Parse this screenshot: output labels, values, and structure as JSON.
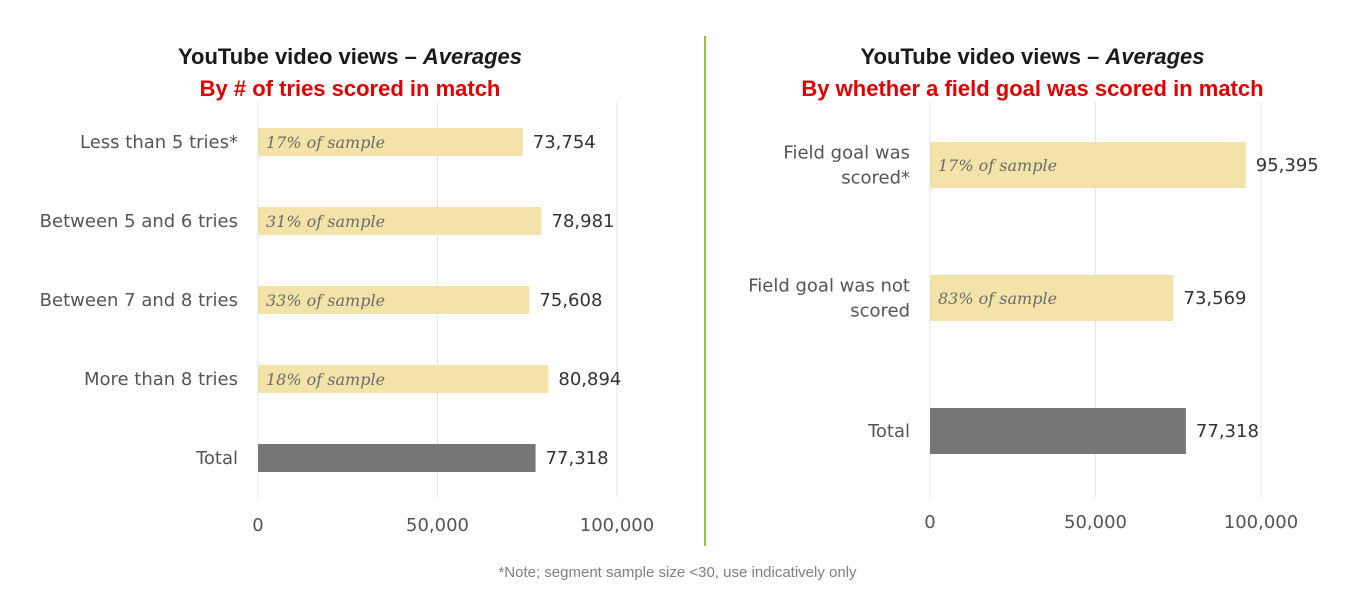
{
  "colors": {
    "bar": "#f3e3a8",
    "total_bar": "#767676",
    "grid": "#e3e3e3",
    "divider": "#8cc63f",
    "subtitle": "#e00000"
  },
  "footnote": "*Note; segment sample size <30, use indicatively only",
  "chart_data": [
    {
      "type": "bar",
      "orientation": "horizontal",
      "title": "YouTube video views – ",
      "title_italic": "Averages",
      "subtitle": "By # of tries scored in match",
      "categories": [
        "Less than 5 tries*",
        "Between 5 and 6 tries",
        "Between 7 and 8 tries",
        "More than 8 tries",
        "Total"
      ],
      "values": [
        73754,
        78981,
        75608,
        80894,
        77318
      ],
      "value_labels": [
        "73,754",
        "78,981",
        "75,608",
        "80,894",
        "77,318"
      ],
      "bar_annotations": [
        "17% of sample",
        "31% of sample",
        "33% of sample",
        "18% of sample",
        ""
      ],
      "xlim": [
        0,
        100000
      ],
      "x_ticks": [
        0,
        50000,
        100000
      ],
      "x_tick_labels": [
        "0",
        "50,000",
        "100,000"
      ],
      "grid": true
    },
    {
      "type": "bar",
      "orientation": "horizontal",
      "title": "YouTube video views – ",
      "title_italic": "Averages",
      "subtitle": "By whether a field goal was scored in match",
      "categories": [
        [
          "Field goal was",
          "scored*"
        ],
        [
          "Field goal was not",
          "scored"
        ],
        [
          "Total"
        ]
      ],
      "values": [
        95395,
        73569,
        77318
      ],
      "value_labels": [
        "95,395",
        "73,569",
        "77,318"
      ],
      "bar_annotations": [
        "17% of sample",
        "83% of sample",
        ""
      ],
      "xlim": [
        0,
        100000
      ],
      "x_ticks": [
        0,
        50000,
        100000
      ],
      "x_tick_labels": [
        "0",
        "50,000",
        "100,000"
      ],
      "grid": true
    }
  ]
}
